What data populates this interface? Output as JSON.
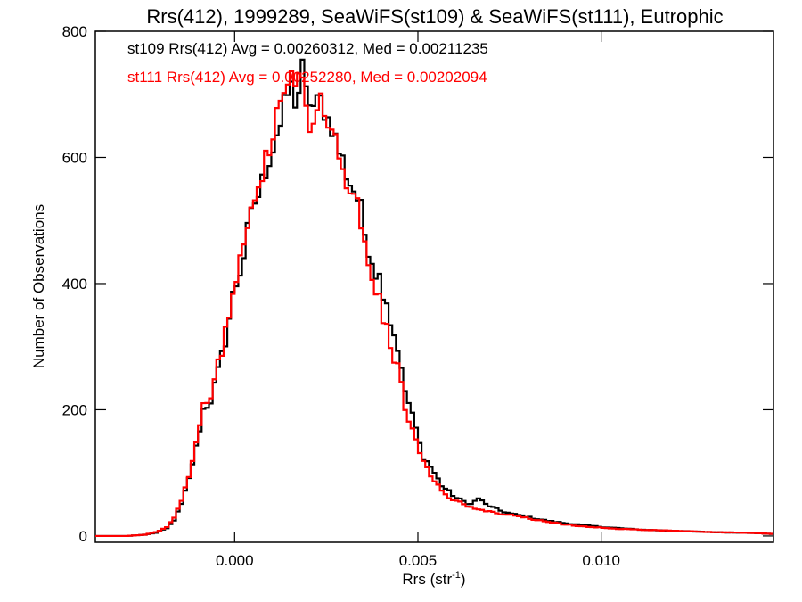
{
  "chart_data": {
    "type": "histogram",
    "title": "Rrs(412), 1999289, SeaWiFS(st109) & SeaWiFS(st111), Eutrophic",
    "xlabel": "Rrs (str",
    "xlabel_sup": "-1",
    "xlabel_end": ")",
    "ylabel": "Number of Observations",
    "xlim": [
      -0.0038,
      0.0147
    ],
    "ylim": [
      -10,
      800
    ],
    "xticks": [
      0.0,
      0.005,
      0.01
    ],
    "xtick_labels": [
      "0.000",
      "0.005",
      "0.010"
    ],
    "yticks": [
      0,
      200,
      400,
      600,
      800
    ],
    "ytick_labels": [
      "0",
      "200",
      "400",
      "600",
      "800"
    ],
    "bin_width": 0.0001,
    "grid": false,
    "series": [
      {
        "name": "st109",
        "color": "#000000",
        "legend": "st109 Rrs(412) Avg = 0.00260312, Med = 0.00211235",
        "points": [
          [
            -0.0038,
            0
          ],
          [
            -0.003,
            0
          ],
          [
            -0.0025,
            2
          ],
          [
            -0.0022,
            5
          ],
          [
            -0.0019,
            12
          ],
          [
            -0.0017,
            25
          ],
          [
            -0.0015,
            50
          ],
          [
            -0.0013,
            90
          ],
          [
            -0.0011,
            140
          ],
          [
            -0.001,
            170
          ],
          [
            -0.0009,
            200
          ],
          [
            -0.0007,
            215
          ],
          [
            -0.0005,
            260
          ],
          [
            -0.0003,
            310
          ],
          [
            -0.0001,
            380
          ],
          [
            0.0,
            400
          ],
          [
            0.0001,
            420
          ],
          [
            0.0002,
            445
          ],
          [
            0.0003,
            480
          ],
          [
            0.0004,
            505
          ],
          [
            0.0005,
            530
          ],
          [
            0.0006,
            540
          ],
          [
            0.0007,
            560
          ],
          [
            0.0008,
            580
          ],
          [
            0.0009,
            600
          ],
          [
            0.001,
            615
          ],
          [
            0.0011,
            640
          ],
          [
            0.0012,
            650
          ],
          [
            0.0013,
            680
          ],
          [
            0.0014,
            700
          ],
          [
            0.0015,
            710
          ],
          [
            0.0016,
            690
          ],
          [
            0.0017,
            705
          ],
          [
            0.0018,
            740
          ],
          [
            0.0019,
            700
          ],
          [
            0.002,
            690
          ],
          [
            0.0021,
            680
          ],
          [
            0.0022,
            685
          ],
          [
            0.0023,
            690
          ],
          [
            0.0024,
            675
          ],
          [
            0.0025,
            660
          ],
          [
            0.0026,
            650
          ],
          [
            0.0027,
            630
          ],
          [
            0.0028,
            610
          ],
          [
            0.0029,
            595
          ],
          [
            0.003,
            575
          ],
          [
            0.0031,
            560
          ],
          [
            0.0032,
            550
          ],
          [
            0.0033,
            535
          ],
          [
            0.0034,
            515
          ],
          [
            0.0035,
            480
          ],
          [
            0.0036,
            460
          ],
          [
            0.0037,
            440
          ],
          [
            0.0038,
            420
          ],
          [
            0.0039,
            410
          ],
          [
            0.004,
            390
          ],
          [
            0.0041,
            375
          ],
          [
            0.0042,
            340
          ],
          [
            0.0043,
            320
          ],
          [
            0.0044,
            300
          ],
          [
            0.0045,
            260
          ],
          [
            0.0046,
            230
          ],
          [
            0.0047,
            210
          ],
          [
            0.0048,
            190
          ],
          [
            0.0049,
            170
          ],
          [
            0.005,
            145
          ],
          [
            0.0051,
            125
          ],
          [
            0.0052,
            118
          ],
          [
            0.0053,
            110
          ],
          [
            0.0054,
            100
          ],
          [
            0.0055,
            90
          ],
          [
            0.0056,
            80
          ],
          [
            0.0057,
            75
          ],
          [
            0.0058,
            70
          ],
          [
            0.0059,
            65
          ],
          [
            0.006,
            60
          ],
          [
            0.0062,
            55
          ],
          [
            0.0064,
            50
          ],
          [
            0.0066,
            60
          ],
          [
            0.0068,
            50
          ],
          [
            0.007,
            45
          ],
          [
            0.0072,
            40
          ],
          [
            0.0075,
            35
          ],
          [
            0.0078,
            32
          ],
          [
            0.0081,
            28
          ],
          [
            0.0085,
            24
          ],
          [
            0.009,
            20
          ],
          [
            0.0095,
            17
          ],
          [
            0.01,
            14
          ],
          [
            0.0105,
            12
          ],
          [
            0.011,
            10
          ],
          [
            0.0115,
            9
          ],
          [
            0.012,
            8
          ],
          [
            0.013,
            6
          ],
          [
            0.014,
            5
          ],
          [
            0.0147,
            3
          ]
        ]
      },
      {
        "name": "st111",
        "color": "#ff0000",
        "legend": "st111 Rrs(412) Avg = 0.00252280, Med = 0.00202094",
        "points": [
          [
            -0.0038,
            0
          ],
          [
            -0.003,
            0
          ],
          [
            -0.0025,
            2
          ],
          [
            -0.0022,
            6
          ],
          [
            -0.0019,
            14
          ],
          [
            -0.0017,
            28
          ],
          [
            -0.0015,
            55
          ],
          [
            -0.0013,
            95
          ],
          [
            -0.0011,
            145
          ],
          [
            -0.001,
            175
          ],
          [
            -0.0009,
            205
          ],
          [
            -0.0007,
            220
          ],
          [
            -0.0005,
            270
          ],
          [
            -0.0003,
            320
          ],
          [
            -0.0001,
            390
          ],
          [
            0.0,
            410
          ],
          [
            0.0001,
            435
          ],
          [
            0.0002,
            465
          ],
          [
            0.0003,
            500
          ],
          [
            0.0004,
            520
          ],
          [
            0.0005,
            545
          ],
          [
            0.0006,
            560
          ],
          [
            0.0007,
            580
          ],
          [
            0.0008,
            595
          ],
          [
            0.0009,
            610
          ],
          [
            0.001,
            630
          ],
          [
            0.0011,
            660
          ],
          [
            0.0012,
            680
          ],
          [
            0.0013,
            705
          ],
          [
            0.0014,
            730
          ],
          [
            0.0015,
            745
          ],
          [
            0.0016,
            715
          ],
          [
            0.0017,
            735
          ],
          [
            0.0018,
            720
          ],
          [
            0.0019,
            690
          ],
          [
            0.002,
            660
          ],
          [
            0.0021,
            650
          ],
          [
            0.0022,
            665
          ],
          [
            0.0023,
            690
          ],
          [
            0.0024,
            680
          ],
          [
            0.0025,
            655
          ],
          [
            0.0026,
            640
          ],
          [
            0.0027,
            625
          ],
          [
            0.0028,
            600
          ],
          [
            0.0029,
            580
          ],
          [
            0.003,
            565
          ],
          [
            0.0031,
            545
          ],
          [
            0.0032,
            530
          ],
          [
            0.0033,
            520
          ],
          [
            0.0034,
            500
          ],
          [
            0.0035,
            470
          ],
          [
            0.0036,
            445
          ],
          [
            0.0037,
            415
          ],
          [
            0.0038,
            395
          ],
          [
            0.0039,
            370
          ],
          [
            0.004,
            350
          ],
          [
            0.0041,
            330
          ],
          [
            0.0042,
            305
          ],
          [
            0.0043,
            285
          ],
          [
            0.0044,
            265
          ],
          [
            0.0045,
            235
          ],
          [
            0.0046,
            205
          ],
          [
            0.0047,
            185
          ],
          [
            0.0048,
            165
          ],
          [
            0.0049,
            150
          ],
          [
            0.005,
            130
          ],
          [
            0.0051,
            115
          ],
          [
            0.0052,
            105
          ],
          [
            0.0053,
            95
          ],
          [
            0.0054,
            88
          ],
          [
            0.0055,
            80
          ],
          [
            0.0056,
            72
          ],
          [
            0.0057,
            68
          ],
          [
            0.0058,
            62
          ],
          [
            0.0059,
            58
          ],
          [
            0.006,
            55
          ],
          [
            0.0062,
            50
          ],
          [
            0.0064,
            45
          ],
          [
            0.0066,
            42
          ],
          [
            0.0068,
            40
          ],
          [
            0.007,
            38
          ],
          [
            0.0072,
            35
          ],
          [
            0.0075,
            33
          ],
          [
            0.0078,
            30
          ],
          [
            0.0081,
            26
          ],
          [
            0.0085,
            22
          ],
          [
            0.009,
            18
          ],
          [
            0.0095,
            15
          ],
          [
            0.01,
            13
          ],
          [
            0.0105,
            11
          ],
          [
            0.011,
            10
          ],
          [
            0.0115,
            9
          ],
          [
            0.012,
            8
          ],
          [
            0.013,
            6
          ],
          [
            0.014,
            5
          ],
          [
            0.0147,
            3
          ]
        ]
      }
    ]
  }
}
